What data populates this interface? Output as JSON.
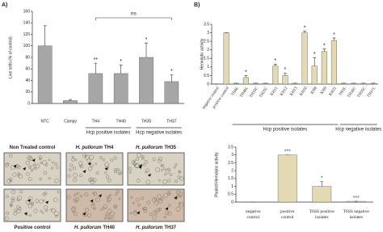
{
  "chart_data": [
    {
      "type": "bar",
      "panel": "A)",
      "y_label": "Live cells (% of control)",
      "categories": [
        "NTC",
        "Campy",
        "TH4",
        "TH40",
        "TH35",
        "TH37"
      ],
      "values": [
        100,
        5,
        52,
        52,
        80,
        38
      ],
      "errors": [
        35,
        2,
        18,
        15,
        25,
        12
      ],
      "annotations": [
        null,
        null,
        "**",
        "*",
        "*",
        "*"
      ],
      "group": [
        null,
        null,
        "Hcp positive isolates",
        "Hcp positive isolates",
        "Hcp negative isolates",
        "Hcp negative isolates"
      ],
      "bracket_label": "ns",
      "color": "#a6a6a6",
      "ylim": [
        0,
        160
      ],
      "yticks": [
        0,
        20,
        40,
        60,
        80,
        100,
        120,
        140,
        160
      ]
    },
    {
      "type": "bar",
      "panel": "B)",
      "y_label": "Hemolytic activity",
      "categories": [
        "negative control",
        "positive control",
        "TH4L",
        "TH40L",
        "TH35C",
        "TH25C",
        "KH11",
        "KH12",
        "KH13",
        "KH10",
        "KH8",
        "KH9",
        "KH21",
        "TH3L",
        "TH36C",
        "TH55C",
        "TH37L"
      ],
      "values": [
        0,
        3.0,
        0.05,
        0.38,
        0.05,
        0.05,
        1.05,
        0.5,
        0.05,
        3.0,
        1.05,
        1.9,
        2.55,
        0.05,
        0.05,
        0.05,
        0.05
      ],
      "errors": [
        0,
        0,
        0,
        0.12,
        0,
        0,
        0.12,
        0.15,
        0,
        0.1,
        0.5,
        0.15,
        0.15,
        0,
        0,
        0,
        0
      ],
      "annotations": [
        null,
        null,
        null,
        "*",
        null,
        null,
        "*",
        "*",
        null,
        "*",
        "*",
        "*",
        "*",
        null,
        null,
        null,
        null
      ],
      "group": [
        null,
        null,
        "Hcp positive isolates",
        "Hcp positive isolates",
        "Hcp positive isolates",
        "Hcp positive isolates",
        "Hcp positive isolates",
        "Hcp positive isolates",
        "Hcp positive isolates",
        "Hcp positive isolates",
        "Hcp positive isolates",
        "Hcp positive isolates",
        "Hcp positive isolates",
        "Hcp negative isolates",
        "Hcp negative isolates",
        "Hcp negative isolates",
        "Hcp negative isolates"
      ],
      "color": "#e3d9b3",
      "ylim": [
        0,
        3.5
      ],
      "yticks": [
        0,
        0.5,
        1,
        1.5,
        2,
        2.5,
        3,
        3.5
      ]
    },
    {
      "type": "bar",
      "y_label": "Pooled Hemolytic activity",
      "categories": [
        "negative control",
        "positive control",
        "T6SS positive isolates",
        "T6SS negative isolates"
      ],
      "values": [
        0,
        3.0,
        1.0,
        0.05
      ],
      "errors": [
        0,
        0,
        0.3,
        0
      ],
      "annotations": [
        null,
        "***",
        "*",
        "***"
      ],
      "color": "#e3d9b3",
      "annotation_color": "#2f55b0",
      "ylim": [
        0,
        3.5
      ],
      "yticks": [
        0,
        0.5,
        1,
        1.5,
        2,
        2.5,
        3,
        3.5
      ]
    }
  ],
  "micrographs": {
    "panels": [
      {
        "title": "Non Treated control"
      },
      {
        "species": "H. pullorum",
        "strain": "TH4"
      },
      {
        "species": "H. pullorum",
        "strain": "TH35"
      },
      {
        "title": "Positive control"
      },
      {
        "species": "H. pullorum",
        "strain": "TH40"
      },
      {
        "species": "H. pullorum",
        "strain": "TH37"
      }
    ]
  }
}
